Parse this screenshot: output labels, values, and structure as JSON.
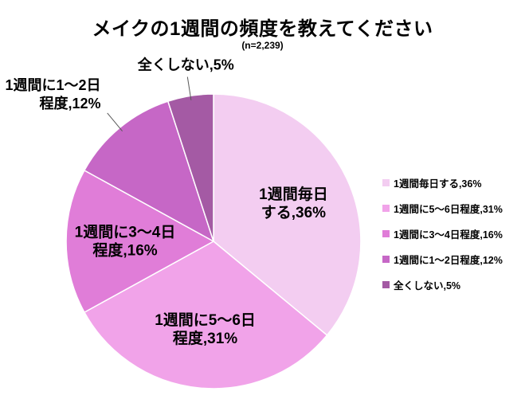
{
  "chart_data": {
    "type": "pie",
    "title": "メイクの1週間の頻度を教えてください",
    "subtitle": "(n=2,239)",
    "categories": [
      "1週間毎日する",
      "1週間に5〜6日程度",
      "1週間に3〜4日程度",
      "1週間に1〜2日程度",
      "全くしない"
    ],
    "values": [
      36,
      31,
      16,
      12,
      5
    ],
    "unit": "%",
    "colors": [
      "#f3cdf1",
      "#f1a3e9",
      "#e07dd8",
      "#c667c6",
      "#a45aa4"
    ],
    "start_angle": "top",
    "direction": "clockwise",
    "legend_position": "right",
    "legend": [
      "1週間毎日する,36%",
      "1週間に5〜6日程度,31%",
      "1週間に3〜4日程度,16%",
      "1週間に1〜2日程度,12%",
      "全くしない,5%"
    ],
    "slice_labels": [
      {
        "lines": [
          "1週間毎日",
          "する,36%"
        ],
        "placement": "inside"
      },
      {
        "lines": [
          "1週間に5〜6日",
          "程度,31%"
        ],
        "placement": "inside"
      },
      {
        "lines": [
          "1週間に3〜4日",
          "程度,16%"
        ],
        "placement": "inside"
      },
      {
        "lines": [
          "1週間に1〜2日",
          "程度,12%"
        ],
        "placement": "outside"
      },
      {
        "lines": [
          "全くしない,5%"
        ],
        "placement": "outside"
      }
    ],
    "label_color": "#000000",
    "leader_line_color": "#595959",
    "background_color": "#ffffff"
  }
}
